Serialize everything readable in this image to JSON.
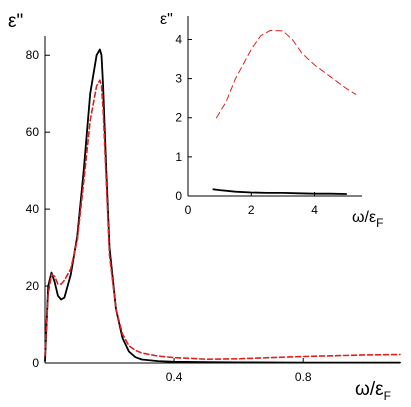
{
  "chart_data": [
    {
      "type": "line",
      "name": "main",
      "ylabel": "ε\"",
      "xlabel": "ω/εF",
      "xlabel_parts": {
        "main": "ω/ε",
        "sub": "F"
      },
      "xlim": [
        0,
        1.1
      ],
      "ylim": [
        0,
        85
      ],
      "xticks": [
        {
          "value": 0.4,
          "label": "0.4"
        },
        {
          "value": 0.8,
          "label": "0.8"
        }
      ],
      "yticks": [
        {
          "value": 0,
          "label": "0"
        },
        {
          "value": 20,
          "label": "20"
        },
        {
          "value": 40,
          "label": "40"
        },
        {
          "value": 60,
          "label": "60"
        },
        {
          "value": 80,
          "label": "80"
        }
      ],
      "series": [
        {
          "color": "#000000",
          "style": "solid",
          "x": [
            0.0,
            0.01,
            0.02,
            0.03,
            0.04,
            0.05,
            0.06,
            0.08,
            0.1,
            0.12,
            0.14,
            0.16,
            0.17,
            0.175,
            0.18,
            0.19,
            0.2,
            0.22,
            0.24,
            0.26,
            0.28,
            0.3,
            0.35,
            0.4,
            0.5,
            0.6,
            0.8,
            1.0,
            1.1
          ],
          "y": [
            0.5,
            20,
            23.5,
            21,
            17.5,
            16.5,
            17,
            23,
            33,
            50,
            70,
            80,
            81.5,
            80,
            72,
            50,
            30,
            14,
            6.5,
            3,
            1.5,
            0.9,
            0.5,
            0.3,
            0.2,
            0.15,
            0.1,
            0.1,
            0.1
          ]
        },
        {
          "color": "#e02020",
          "style": "dashed",
          "x": [
            0.0,
            0.01,
            0.02,
            0.03,
            0.04,
            0.05,
            0.06,
            0.08,
            0.1,
            0.12,
            0.14,
            0.16,
            0.17,
            0.175,
            0.18,
            0.19,
            0.2,
            0.22,
            0.24,
            0.26,
            0.28,
            0.3,
            0.35,
            0.4,
            0.5,
            0.6,
            0.7,
            0.8,
            0.9,
            1.0,
            1.1
          ],
          "y": [
            2,
            18,
            23,
            22.5,
            20.5,
            20.5,
            21.5,
            24.5,
            32,
            47,
            63,
            72,
            73.5,
            72,
            66,
            47,
            28,
            14,
            7.5,
            4.5,
            3.3,
            2.6,
            1.8,
            1.4,
            1.0,
            1.1,
            1.4,
            1.7,
            1.9,
            2.1,
            2.2
          ]
        }
      ]
    },
    {
      "type": "line",
      "name": "inset",
      "ylabel": "ε\"",
      "xlabel": "ω/εF",
      "xlabel_parts": {
        "main": "ω/ε",
        "sub": "F"
      },
      "xlim": [
        0,
        5.5
      ],
      "ylim": [
        0,
        4.6
      ],
      "xticks": [
        {
          "value": 0,
          "label": "0"
        },
        {
          "value": 2,
          "label": "2"
        },
        {
          "value": 4,
          "label": "4"
        }
      ],
      "yticks": [
        {
          "value": 0,
          "label": "0"
        },
        {
          "value": 1,
          "label": "1"
        },
        {
          "value": 2,
          "label": "2"
        },
        {
          "value": 3,
          "label": "3"
        },
        {
          "value": 4,
          "label": "4"
        }
      ],
      "series": [
        {
          "color": "#000000",
          "style": "solid",
          "x": [
            0.8,
            1.0,
            1.5,
            2.0,
            2.5,
            3.0,
            3.5,
            4.0,
            4.5,
            5.0
          ],
          "y": [
            0.17,
            0.15,
            0.11,
            0.09,
            0.08,
            0.08,
            0.07,
            0.06,
            0.06,
            0.05
          ]
        },
        {
          "color": "#e02020",
          "style": "dashed",
          "x": [
            0.9,
            1.2,
            1.5,
            2.0,
            2.3,
            2.6,
            3.0,
            3.3,
            3.6,
            4.0,
            4.5,
            5.0,
            5.3
          ],
          "y": [
            2.0,
            2.4,
            3.0,
            3.75,
            4.1,
            4.23,
            4.22,
            4.0,
            3.65,
            3.35,
            3.05,
            2.75,
            2.6
          ]
        }
      ]
    }
  ]
}
